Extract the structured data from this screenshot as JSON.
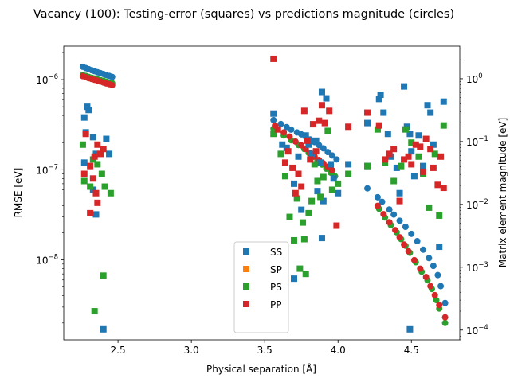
{
  "chart_data": {
    "type": "scatter",
    "title": "Vacancy (100): Testing-error (squares) vs predictions magnitude (circles)",
    "xlabel": "Physical separation [Å]",
    "ylabel_left": "RMSE [eV]",
    "ylabel_right": "Matrix element magnitude [eV]",
    "xlim": [
      2.13,
      4.83
    ],
    "x_ticks": [
      2.5,
      3.0,
      3.5,
      4.0,
      4.5
    ],
    "x_tick_labels": [
      "2.5",
      "3.0",
      "3.5",
      "4.0",
      "4.5"
    ],
    "y_left_scale": "log",
    "y_left_lim": [
      1.3e-09,
      2.35e-06
    ],
    "y_left_ticks": [
      1e-08,
      1e-07,
      1e-06
    ],
    "y_left_tick_labels": [
      "10^-8",
      "10^-7",
      "10^-6"
    ],
    "y_right_scale": "log",
    "y_right_lim": [
      7e-05,
      3.3
    ],
    "y_right_ticks": [
      0.0001,
      0.001,
      0.01,
      0.1,
      1
    ],
    "y_right_tick_labels": [
      "10^-4",
      "10^-3",
      "10^-2",
      "10^-1",
      "10^0"
    ],
    "legend": {
      "placement": "lower center",
      "entries": [
        {
          "label": "SS",
          "color": "#1f77b4"
        },
        {
          "label": "SP",
          "color": "#ff7f0e"
        },
        {
          "label": "PS",
          "color": "#2ca02c"
        },
        {
          "label": "PP",
          "color": "#d62728"
        }
      ]
    },
    "series": [
      {
        "name": "SS",
        "color": "#1f77b4",
        "squares": [
          [
            2.27,
            3.8e-07
          ],
          [
            2.29,
            5e-07
          ],
          [
            2.3,
            4.6e-07
          ],
          [
            2.28,
            2.6e-07
          ],
          [
            2.33,
            2.3e-07
          ],
          [
            2.35,
            1.5e-07
          ],
          [
            2.27,
            1.2e-07
          ],
          [
            2.42,
            2.2e-07
          ],
          [
            2.44,
            1.5e-07
          ],
          [
            2.33,
            6e-08
          ],
          [
            2.35,
            3.2e-08
          ],
          [
            2.4,
            1.7e-09
          ],
          [
            3.56,
            4.2e-07
          ],
          [
            3.62,
            1.9e-07
          ],
          [
            3.65,
            1.75e-07
          ],
          [
            3.7,
            7e-08
          ],
          [
            3.73,
            1.4e-07
          ],
          [
            3.78,
            2.4e-07
          ],
          [
            3.8,
            1.9e-07
          ],
          [
            3.82,
            1.5e-07
          ],
          [
            3.85,
            2.1e-07
          ],
          [
            3.89,
            7.3e-07
          ],
          [
            3.92,
            6.2e-07
          ],
          [
            3.88,
            1.2e-07
          ],
          [
            3.9,
            4.5e-08
          ],
          [
            3.89,
            1.75e-08
          ],
          [
            3.95,
            1.15e-07
          ],
          [
            3.97,
            8e-08
          ],
          [
            4.0,
            5.5e-08
          ],
          [
            4.07,
            1.15e-07
          ],
          [
            3.7,
            6.2e-09
          ],
          [
            3.75,
            3.6e-08
          ],
          [
            3.86,
            5.8e-08
          ],
          [
            4.2,
            3.3e-07
          ],
          [
            4.2,
            1.1e-07
          ],
          [
            4.28,
            6.1e-07
          ],
          [
            4.29,
            6.8e-07
          ],
          [
            4.31,
            4.3e-07
          ],
          [
            4.34,
            2.5e-07
          ],
          [
            4.36,
            1.4e-07
          ],
          [
            4.4,
            1.05e-07
          ],
          [
            4.42,
            5.5e-08
          ],
          [
            4.45,
            8.4e-07
          ],
          [
            4.47,
            3e-07
          ],
          [
            4.49,
            2.5e-07
          ],
          [
            4.5,
            1.6e-07
          ],
          [
            4.52,
            8.5e-08
          ],
          [
            4.55,
            2.4e-07
          ],
          [
            4.58,
            1.1e-07
          ],
          [
            4.61,
            5.2e-07
          ],
          [
            4.63,
            4.3e-07
          ],
          [
            4.65,
            1.9e-07
          ],
          [
            4.69,
            1.4e-08
          ],
          [
            4.72,
            5.7e-07
          ],
          [
            4.49,
            1.7e-09
          ]
        ],
        "circles": [
          [
            2.26,
            1.55
          ],
          [
            2.28,
            1.48
          ],
          [
            2.3,
            1.42
          ],
          [
            2.32,
            1.37
          ],
          [
            2.34,
            1.32
          ],
          [
            2.36,
            1.27
          ],
          [
            2.38,
            1.23
          ],
          [
            2.4,
            1.19
          ],
          [
            2.42,
            1.15
          ],
          [
            2.44,
            1.11
          ],
          [
            2.46,
            1.07
          ],
          [
            3.56,
            0.22
          ],
          [
            3.61,
            0.19
          ],
          [
            3.65,
            0.17
          ],
          [
            3.68,
            0.155
          ],
          [
            3.72,
            0.14
          ],
          [
            3.75,
            0.13
          ],
          [
            3.78,
            0.12
          ],
          [
            3.81,
            0.108
          ],
          [
            3.84,
            0.098
          ],
          [
            3.87,
            0.088
          ],
          [
            3.9,
            0.078
          ],
          [
            3.93,
            0.068
          ],
          [
            3.96,
            0.06
          ],
          [
            3.99,
            0.052
          ],
          [
            4.2,
            0.018
          ],
          [
            4.27,
            0.013
          ],
          [
            4.3,
            0.011
          ],
          [
            4.35,
            0.0083
          ],
          [
            4.38,
            0.0069
          ],
          [
            4.42,
            0.0055
          ],
          [
            4.46,
            0.0044
          ],
          [
            4.5,
            0.0034
          ],
          [
            4.54,
            0.0026
          ],
          [
            4.58,
            0.0019
          ],
          [
            4.62,
            0.0014
          ],
          [
            4.65,
            0.00105
          ],
          [
            4.68,
            0.00075
          ],
          [
            4.7,
            0.0005
          ],
          [
            4.73,
            0.00027
          ]
        ]
      },
      {
        "name": "SP",
        "color": "#ff7f0e",
        "squares": [],
        "circles": []
      },
      {
        "name": "PS",
        "color": "#2ca02c",
        "squares": [
          [
            2.26,
            1.9e-07
          ],
          [
            2.27,
            7.5e-08
          ],
          [
            2.31,
            6.5e-08
          ],
          [
            2.33,
            1.3e-07
          ],
          [
            2.36,
            1.15e-07
          ],
          [
            2.39,
            9e-08
          ],
          [
            2.41,
            6.5e-08
          ],
          [
            2.45,
            5.5e-08
          ],
          [
            2.4,
            6.7e-09
          ],
          [
            2.34,
            2.7e-09
          ],
          [
            3.56,
            2.5e-07
          ],
          [
            3.61,
            1.5e-07
          ],
          [
            3.64,
            8.5e-08
          ],
          [
            3.67,
            3e-08
          ],
          [
            3.7,
            1.65e-08
          ],
          [
            3.72,
            4.8e-08
          ],
          [
            3.74,
            8e-09
          ],
          [
            3.76,
            2.6e-08
          ],
          [
            3.77,
            1.7e-08
          ],
          [
            3.78,
            7e-09
          ],
          [
            3.8,
            3.3e-08
          ],
          [
            3.82,
            4.5e-08
          ],
          [
            3.84,
            1.15e-07
          ],
          [
            3.86,
            7.5e-08
          ],
          [
            3.88,
            5e-08
          ],
          [
            3.9,
            8.3e-08
          ],
          [
            3.93,
            2.7e-07
          ],
          [
            3.96,
            6e-08
          ],
          [
            4.0,
            7e-08
          ],
          [
            4.07,
            9e-08
          ],
          [
            4.2,
            1.1e-07
          ],
          [
            4.27,
            2.8e-07
          ],
          [
            4.32,
            1.2e-07
          ],
          [
            4.38,
            7.5e-08
          ],
          [
            4.43,
            1.1e-07
          ],
          [
            4.46,
            2.8e-07
          ],
          [
            4.5,
            2e-07
          ],
          [
            4.55,
            1.4e-07
          ],
          [
            4.58,
            9e-08
          ],
          [
            4.62,
            3.8e-08
          ],
          [
            4.66,
            1.5e-07
          ],
          [
            4.69,
            3.1e-08
          ],
          [
            4.72,
            3.1e-07
          ]
        ],
        "circles": [
          [
            2.26,
            1.15
          ],
          [
            2.28,
            1.11
          ],
          [
            2.3,
            1.07
          ],
          [
            2.32,
            1.04
          ],
          [
            2.34,
            1.01
          ],
          [
            2.36,
            0.98
          ],
          [
            2.38,
            0.95
          ],
          [
            2.4,
            0.93
          ],
          [
            2.42,
            0.9
          ],
          [
            2.44,
            0.87
          ],
          [
            2.46,
            0.85
          ],
          [
            3.56,
            0.16
          ],
          [
            3.63,
            0.125
          ],
          [
            3.68,
            0.105
          ],
          [
            3.73,
            0.088
          ],
          [
            3.77,
            0.076
          ],
          [
            3.8,
            0.066
          ],
          [
            3.83,
            0.057
          ],
          [
            3.86,
            0.05
          ],
          [
            3.89,
            0.043
          ],
          [
            3.92,
            0.037
          ],
          [
            3.95,
            0.032
          ],
          [
            3.98,
            0.028
          ],
          [
            4.28,
            0.0085
          ],
          [
            4.32,
            0.0062
          ],
          [
            4.36,
            0.0047
          ],
          [
            4.4,
            0.0036
          ],
          [
            4.43,
            0.0028
          ],
          [
            4.46,
            0.0022
          ],
          [
            4.49,
            0.0017
          ],
          [
            4.53,
            0.0012
          ],
          [
            4.57,
            0.00085
          ],
          [
            4.61,
            0.00062
          ],
          [
            4.64,
            0.00045
          ],
          [
            4.67,
            0.0003
          ],
          [
            4.69,
            0.00022
          ],
          [
            4.73,
            0.00013
          ]
        ]
      },
      {
        "name": "PP",
        "color": "#d62728",
        "squares": [
          [
            2.28,
            2.5e-07
          ],
          [
            2.27,
            9e-08
          ],
          [
            2.31,
            1.1e-07
          ],
          [
            2.33,
            8e-08
          ],
          [
            2.34,
            1.4e-07
          ],
          [
            2.35,
            5.5e-08
          ],
          [
            2.36,
            1.9e-07
          ],
          [
            2.38,
            1.5e-07
          ],
          [
            2.4,
            1.7e-07
          ],
          [
            2.36,
            4.3e-08
          ],
          [
            2.31,
            3.3e-08
          ],
          [
            3.56,
            1.7e-06
          ],
          [
            3.59,
            2.8e-07
          ],
          [
            3.64,
            1.2e-07
          ],
          [
            3.66,
            1.6e-07
          ],
          [
            3.69,
            1.05e-07
          ],
          [
            3.71,
            5.5e-08
          ],
          [
            3.73,
            9e-08
          ],
          [
            3.75,
            6.5e-08
          ],
          [
            3.77,
            4.5e-07
          ],
          [
            3.79,
            2.1e-07
          ],
          [
            3.81,
            1.3e-07
          ],
          [
            3.83,
            3.2e-07
          ],
          [
            3.85,
            1.6e-07
          ],
          [
            3.87,
            3.5e-07
          ],
          [
            3.89,
            5.2e-07
          ],
          [
            3.91,
            3.3e-07
          ],
          [
            3.94,
            4.5e-07
          ],
          [
            3.99,
            2.4e-08
          ],
          [
            4.07,
            3e-07
          ],
          [
            4.2,
            4.3e-07
          ],
          [
            4.28,
            3.1e-07
          ],
          [
            4.32,
            1.3e-07
          ],
          [
            4.35,
            1.5e-07
          ],
          [
            4.38,
            1.7e-07
          ],
          [
            4.42,
            4.5e-08
          ],
          [
            4.45,
            1.3e-07
          ],
          [
            4.48,
            1.4e-07
          ],
          [
            4.5,
            1.15e-07
          ],
          [
            4.53,
            1.9e-07
          ],
          [
            4.56,
            1.8e-07
          ],
          [
            4.58,
            9.5e-08
          ],
          [
            4.6,
            2.2e-07
          ],
          [
            4.63,
            1.7e-07
          ],
          [
            4.65,
            1.05e-07
          ],
          [
            4.68,
            6.8e-08
          ],
          [
            4.7,
            1.4e-07
          ],
          [
            4.72,
            6.3e-08
          ]
        ],
        "circles": [
          [
            2.26,
            1.1
          ],
          [
            2.28,
            1.06
          ],
          [
            2.3,
            1.02
          ],
          [
            2.32,
            0.99
          ],
          [
            2.34,
            0.96
          ],
          [
            2.36,
            0.93
          ],
          [
            2.38,
            0.9
          ],
          [
            2.4,
            0.87
          ],
          [
            2.42,
            0.84
          ],
          [
            2.44,
            0.82
          ],
          [
            2.46,
            0.79
          ],
          [
            3.57,
            0.18
          ],
          [
            3.63,
            0.14
          ],
          [
            3.67,
            0.12
          ],
          [
            3.71,
            0.1
          ],
          [
            3.75,
            0.087
          ],
          [
            3.78,
            0.076
          ],
          [
            3.81,
            0.066
          ],
          [
            3.84,
            0.058
          ],
          [
            3.87,
            0.051
          ],
          [
            3.9,
            0.045
          ],
          [
            3.93,
            0.04
          ],
          [
            3.96,
            0.035
          ],
          [
            4.27,
            0.0095
          ],
          [
            4.31,
            0.007
          ],
          [
            4.35,
            0.0052
          ],
          [
            4.39,
            0.0039
          ],
          [
            4.42,
            0.003
          ],
          [
            4.45,
            0.0023
          ],
          [
            4.48,
            0.0018
          ],
          [
            4.52,
            0.0013
          ],
          [
            4.56,
            0.00095
          ],
          [
            4.6,
            0.0007
          ],
          [
            4.63,
            0.0005
          ],
          [
            4.66,
            0.00036
          ],
          [
            4.69,
            0.00025
          ],
          [
            4.73,
            0.00016
          ]
        ]
      }
    ]
  }
}
